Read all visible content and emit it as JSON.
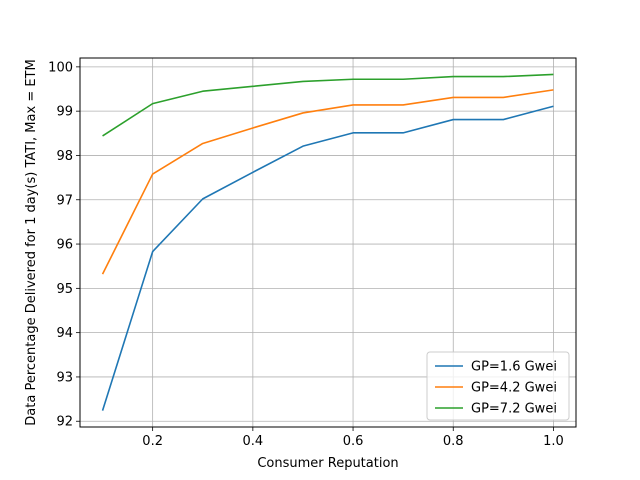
{
  "chart_data": {
    "type": "line",
    "title": "",
    "xlabel": "Consumer Reputation",
    "ylabel": "Data Percentage Delivered for  1 day(s) TATI, Max = ETM",
    "xlim": [
      0.055,
      1.045
    ],
    "ylim": [
      91.87,
      100.2
    ],
    "xticks": [
      0.2,
      0.4,
      0.6,
      0.8,
      1.0
    ],
    "xtick_labels": [
      "0.2",
      "0.4",
      "0.6",
      "0.8",
      "1.0"
    ],
    "yticks": [
      92,
      93,
      94,
      95,
      96,
      97,
      98,
      99,
      100
    ],
    "ytick_labels": [
      "92",
      "93",
      "94",
      "95",
      "96",
      "97",
      "98",
      "99",
      "100"
    ],
    "grid": true,
    "legend_position": "lower-right",
    "x": [
      0.1,
      0.2,
      0.3,
      0.4,
      0.5,
      0.6,
      0.7,
      0.8,
      0.9,
      1.0
    ],
    "series": [
      {
        "name": "GP=1.6 Gwei",
        "color": "#1f77b4",
        "values": [
          92.24,
          95.83,
          97.02,
          97.62,
          98.21,
          98.51,
          98.51,
          98.81,
          98.81,
          99.11
        ]
      },
      {
        "name": "GP=4.2 Gwei",
        "color": "#ff7f0e",
        "values": [
          95.32,
          97.58,
          98.27,
          98.62,
          98.96,
          99.14,
          99.14,
          99.31,
          99.31,
          99.48
        ]
      },
      {
        "name": "GP=7.2 Gwei",
        "color": "#2ca02c",
        "values": [
          98.44,
          99.17,
          99.45,
          99.56,
          99.67,
          99.72,
          99.72,
          99.78,
          99.78,
          99.83
        ]
      }
    ]
  }
}
